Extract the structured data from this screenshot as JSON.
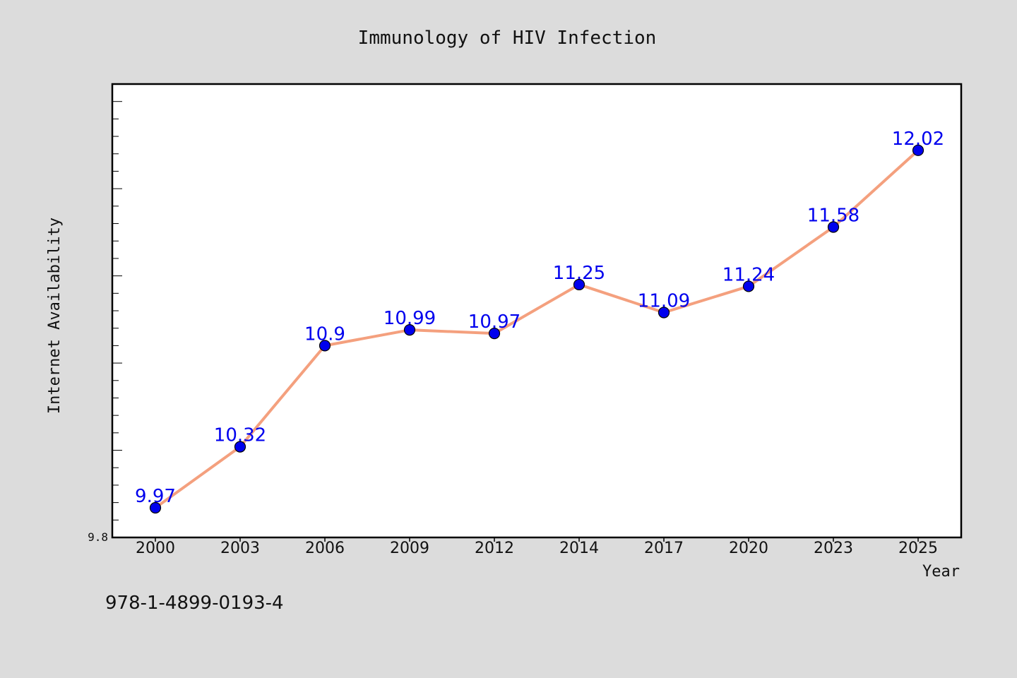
{
  "chart_data": {
    "type": "line",
    "title": "Immunology of HIV Infection",
    "xlabel": "Year",
    "ylabel": "Internet Availability",
    "categories": [
      "2000",
      "2003",
      "2006",
      "2009",
      "2012",
      "2014",
      "2017",
      "2020",
      "2023",
      "2025"
    ],
    "series": [
      {
        "values": [
          9.97,
          10.32,
          10.9,
          10.99,
          10.97,
          11.25,
          11.09,
          11.24,
          11.58,
          12.02
        ],
        "line_color": "#f4a07e",
        "marker_color": "#0000ee"
      }
    ],
    "data_labels": [
      "9.97",
      "10.32",
      "10.9",
      "10.99",
      "10.97",
      "11.25",
      "11.09",
      "11.24",
      "11.58",
      "12.02"
    ],
    "data_label_color": "#0000ee",
    "ylim": [
      9.8,
      12.4
    ],
    "ytick_labels": [
      "9.8"
    ],
    "grid": false
  },
  "footer": {
    "isbn": "978-1-4899-0193-4"
  }
}
